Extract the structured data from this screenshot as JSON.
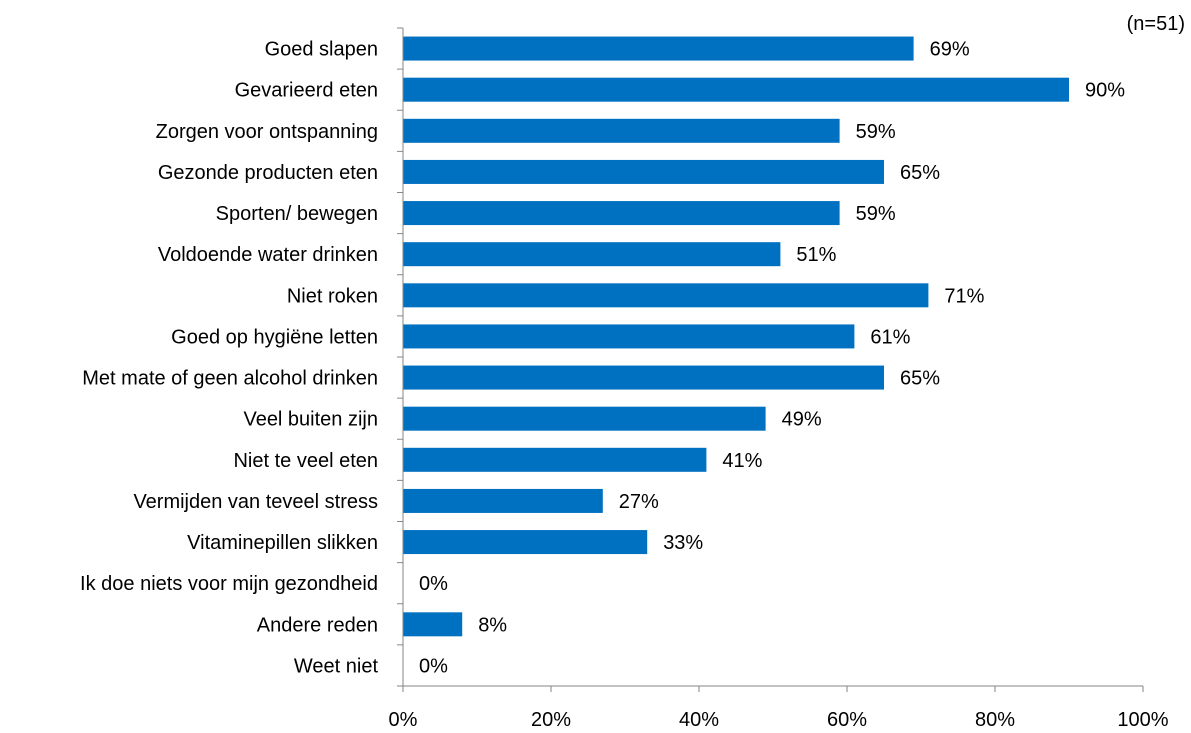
{
  "chart_data": {
    "type": "bar",
    "orientation": "horizontal",
    "note": "(n=51)",
    "categories": [
      "Goed slapen",
      "Gevarieerd eten",
      "Zorgen voor ontspanning",
      "Gezonde producten eten",
      "Sporten/ bewegen",
      "Voldoende water drinken",
      "Niet roken",
      "Goed op hygiëne letten",
      "Met mate of geen alcohol drinken",
      "Veel buiten zijn",
      "Niet te veel eten",
      "Vermijden van teveel stress",
      "Vitaminepillen slikken",
      "Ik doe niets voor mijn gezondheid",
      "Andere reden",
      "Weet niet"
    ],
    "values": [
      69,
      90,
      59,
      65,
      59,
      51,
      71,
      61,
      65,
      49,
      41,
      27,
      33,
      0,
      8,
      0
    ],
    "value_labels": [
      "69%",
      "90%",
      "59%",
      "65%",
      "59%",
      "51%",
      "71%",
      "61%",
      "65%",
      "49%",
      "41%",
      "27%",
      "33%",
      "0%",
      "8%",
      "0%"
    ],
    "xlim": [
      0,
      100
    ],
    "xticks": [
      0,
      20,
      40,
      60,
      80,
      100
    ],
    "xtick_labels": [
      "0%",
      "20%",
      "40%",
      "60%",
      "80%",
      "100%"
    ],
    "grid": false,
    "legend": "none",
    "bar_color": "#0070C0"
  }
}
